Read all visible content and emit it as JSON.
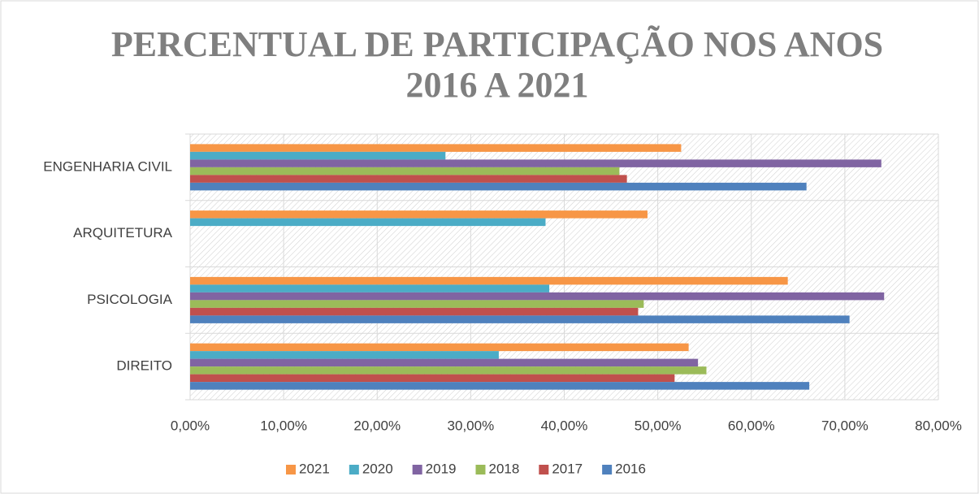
{
  "chart_data": {
    "type": "hbar",
    "title": "PERCENTUAL DE PARTICIPAÇÃO NOS ANOS 2016 A 2021",
    "categories": [
      "DIREITO",
      "PSICOLOGIA",
      "ARQUITETURA",
      "ENGENHARIA CIVIL"
    ],
    "series": [
      {
        "name": "2021",
        "color": "#f79646",
        "values": [
          53.3,
          63.9,
          48.9,
          52.5
        ]
      },
      {
        "name": "2020",
        "color": "#4bacc6",
        "values": [
          33.0,
          38.4,
          38.0,
          27.3
        ]
      },
      {
        "name": "2019",
        "color": "#8064a2",
        "values": [
          54.3,
          74.2,
          null,
          73.9
        ]
      },
      {
        "name": "2018",
        "color": "#9bbb59",
        "values": [
          55.2,
          48.5,
          null,
          45.9
        ]
      },
      {
        "name": "2017",
        "color": "#c0504d",
        "values": [
          51.8,
          47.9,
          null,
          46.7
        ]
      },
      {
        "name": "2016",
        "color": "#4f81bd",
        "values": [
          66.2,
          70.5,
          null,
          65.9
        ]
      }
    ],
    "xlim": [
      0,
      80
    ],
    "xticks": [
      {
        "value": 0,
        "label": "0,00%"
      },
      {
        "value": 10,
        "label": "10,00%"
      },
      {
        "value": 20,
        "label": "20,00%"
      },
      {
        "value": 30,
        "label": "30,00%"
      },
      {
        "value": 40,
        "label": "40,00%"
      },
      {
        "value": 50,
        "label": "50,00%"
      },
      {
        "value": 60,
        "label": "60,00%"
      },
      {
        "value": 70,
        "label": "70,00%"
      },
      {
        "value": 80,
        "label": "80,00%"
      }
    ],
    "grid": true,
    "legend": "bottom"
  }
}
